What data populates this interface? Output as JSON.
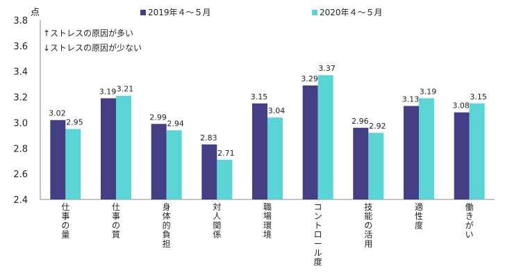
{
  "chart_data": {
    "type": "bar",
    "ylabel": "点",
    "ylim": [
      2.4,
      3.8
    ],
    "yticks": [
      "2.4",
      "2.6",
      "2.8",
      "3.0",
      "3.2",
      "3.4",
      "3.6",
      "3.8"
    ],
    "categories": [
      "仕事の量",
      "仕事の質",
      "身体的負担",
      "対人関係",
      "職場環境",
      "コントロール度",
      "技能の活用",
      "適性度",
      "働きがい"
    ],
    "series": [
      {
        "name": "2019年４～５月",
        "color": "#443f85",
        "values": [
          3.02,
          3.19,
          2.99,
          2.83,
          3.15,
          3.29,
          2.96,
          3.13,
          3.08
        ],
        "labels": [
          "3.02",
          "3.19",
          "2.99",
          "2.83",
          "3.15",
          "3.29",
          "2.96",
          "3.13",
          "3.08"
        ]
      },
      {
        "name": "2020年４～５月",
        "color": "#5ad4d4",
        "values": [
          2.95,
          3.21,
          2.94,
          2.71,
          3.04,
          3.37,
          2.92,
          3.19,
          3.15
        ],
        "labels": [
          "2.95",
          "3.21",
          "2.94",
          "2.71",
          "3.04",
          "3.37",
          "2.92",
          "3.19",
          "3.15"
        ]
      }
    ],
    "notes": [
      "↑ストレスの原因が多い",
      "↓ストレスの原因が少ない"
    ],
    "legend_position": "top",
    "grid": false
  }
}
